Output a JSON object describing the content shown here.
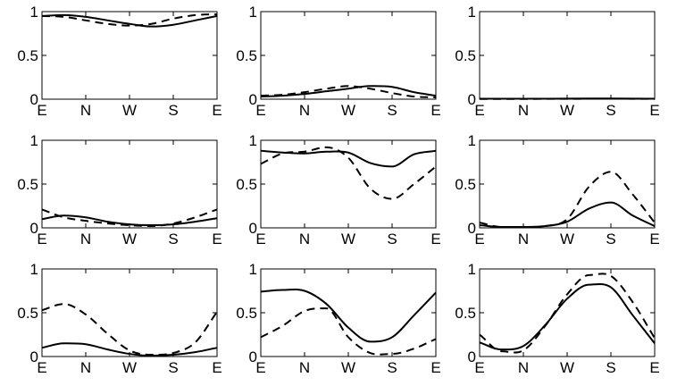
{
  "chart_data": {
    "type": "line",
    "layout": "3x3 grid of small multiples",
    "x_tick_labels": [
      "E",
      "N",
      "W",
      "S",
      "E"
    ],
    "y_tick_labels": [
      "0",
      "0.5",
      "1"
    ],
    "x_positions": [
      0,
      0.25,
      0.5,
      0.75,
      1
    ],
    "ylim": [
      0,
      1
    ],
    "grid": false,
    "legend": "none",
    "line_color": "#000000",
    "line_styles": [
      "solid",
      "dashed"
    ],
    "panels": [
      {
        "x": [
          0,
          0.125,
          0.25,
          0.375,
          0.5,
          0.625,
          0.75,
          0.875,
          1
        ],
        "series": [
          {
            "style": "solid",
            "values": [
              0.95,
              0.96,
              0.94,
              0.9,
              0.86,
              0.83,
              0.85,
              0.9,
              0.95
            ]
          },
          {
            "style": "dashed",
            "values": [
              0.95,
              0.94,
              0.9,
              0.86,
              0.84,
              0.86,
              0.92,
              0.96,
              0.97
            ]
          }
        ]
      },
      {
        "x": [
          0,
          0.125,
          0.25,
          0.375,
          0.5,
          0.625,
          0.75,
          0.875,
          1
        ],
        "series": [
          {
            "style": "solid",
            "values": [
              0.03,
              0.04,
              0.06,
              0.09,
              0.12,
              0.15,
              0.14,
              0.08,
              0.04
            ]
          },
          {
            "style": "dashed",
            "values": [
              0.04,
              0.05,
              0.08,
              0.12,
              0.15,
              0.12,
              0.07,
              0.03,
              0.02
            ]
          }
        ]
      },
      {
        "x": [
          0,
          0.25,
          0.5,
          0.75,
          1
        ],
        "series": [
          {
            "style": "solid",
            "values": [
              0.005,
              0.005,
              0.006,
              0.008,
              0.005
            ]
          },
          {
            "style": "dashed",
            "values": [
              0.003,
              0.003,
              0.004,
              0.005,
              0.003
            ]
          }
        ]
      },
      {
        "x": [
          0,
          0.125,
          0.25,
          0.375,
          0.5,
          0.625,
          0.75,
          0.875,
          1
        ],
        "series": [
          {
            "style": "solid",
            "values": [
              0.1,
              0.14,
              0.12,
              0.07,
              0.04,
              0.03,
              0.04,
              0.07,
              0.11
            ]
          },
          {
            "style": "dashed",
            "values": [
              0.21,
              0.12,
              0.08,
              0.05,
              0.03,
              0.02,
              0.05,
              0.12,
              0.21
            ]
          }
        ]
      },
      {
        "x": [
          0,
          0.125,
          0.25,
          0.375,
          0.5,
          0.625,
          0.75,
          0.875,
          1
        ],
        "series": [
          {
            "style": "solid",
            "values": [
              0.88,
              0.86,
              0.85,
              0.87,
              0.86,
              0.74,
              0.7,
              0.84,
              0.88
            ]
          },
          {
            "style": "dashed",
            "values": [
              0.73,
              0.85,
              0.87,
              0.92,
              0.8,
              0.45,
              0.33,
              0.5,
              0.7
            ]
          }
        ]
      },
      {
        "x": [
          0,
          0.125,
          0.25,
          0.375,
          0.5,
          0.625,
          0.75,
          0.875,
          1
        ],
        "series": [
          {
            "style": "solid",
            "values": [
              0.03,
              0.01,
              0.01,
              0.02,
              0.07,
              0.22,
              0.29,
              0.14,
              0.02
            ]
          },
          {
            "style": "dashed",
            "values": [
              0.06,
              0.01,
              0.01,
              0.02,
              0.1,
              0.47,
              0.64,
              0.38,
              0.06
            ]
          }
        ]
      },
      {
        "x": [
          0,
          0.125,
          0.25,
          0.375,
          0.5,
          0.625,
          0.75,
          0.875,
          1
        ],
        "series": [
          {
            "style": "solid",
            "values": [
              0.1,
              0.15,
              0.14,
              0.08,
              0.03,
              0.01,
              0.02,
              0.05,
              0.1
            ]
          },
          {
            "style": "dashed",
            "values": [
              0.53,
              0.6,
              0.48,
              0.26,
              0.07,
              0.02,
              0.04,
              0.16,
              0.51
            ]
          }
        ]
      },
      {
        "x": [
          0,
          0.125,
          0.25,
          0.375,
          0.5,
          0.625,
          0.75,
          0.875,
          1
        ],
        "series": [
          {
            "style": "solid",
            "values": [
              0.74,
              0.76,
              0.75,
              0.6,
              0.33,
              0.17,
              0.22,
              0.47,
              0.73
            ]
          },
          {
            "style": "dashed",
            "values": [
              0.22,
              0.35,
              0.52,
              0.55,
              0.22,
              0.04,
              0.03,
              0.09,
              0.2
            ]
          }
        ]
      },
      {
        "x": [
          0,
          0.125,
          0.25,
          0.375,
          0.5,
          0.625,
          0.75,
          0.875,
          1
        ],
        "series": [
          {
            "style": "solid",
            "values": [
              0.16,
              0.08,
              0.12,
              0.36,
              0.66,
              0.82,
              0.79,
              0.47,
              0.15
            ]
          },
          {
            "style": "dashed",
            "values": [
              0.25,
              0.06,
              0.07,
              0.35,
              0.71,
              0.93,
              0.92,
              0.62,
              0.21
            ]
          }
        ]
      }
    ]
  }
}
